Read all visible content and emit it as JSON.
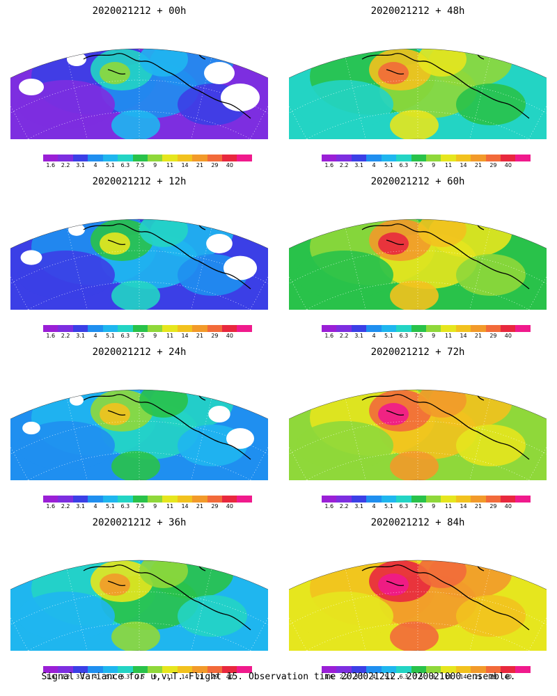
{
  "panels": [
    {
      "title": "2020021212 + 00h",
      "hour": 0
    },
    {
      "title": "2020021212 + 48h",
      "hour": 48
    },
    {
      "title": "2020021212 + 12h",
      "hour": 12
    },
    {
      "title": "2020021212 + 60h",
      "hour": 60
    },
    {
      "title": "2020021212 + 24h",
      "hour": 24
    },
    {
      "title": "2020021212 + 72h",
      "hour": 72
    },
    {
      "title": "2020021212 + 36h",
      "hour": 36
    },
    {
      "title": "2020021212 + 84h",
      "hour": 84
    }
  ],
  "colorbar": {
    "labels": [
      "1.6",
      "2.2",
      "3.1",
      "4",
      "5.1",
      "6.3",
      "7.5",
      "9",
      "11",
      "14",
      "21",
      "29",
      "40"
    ],
    "colors": [
      "#9a1fd6",
      "#7d2ee0",
      "#3b3fe6",
      "#1f8ff0",
      "#1fb6ef",
      "#23d4c4",
      "#29c24a",
      "#8fd83a",
      "#e6e61e",
      "#f2c21e",
      "#f29a2a",
      "#f26a3a",
      "#e8283e",
      "#f01a8c"
    ]
  },
  "footer": "Signal Variance for u,v,T. Flight 15. Observation time 2020021212. 2020021000 ensemble.",
  "colors": {
    "coastline": "#000000",
    "missing": "#ffffff"
  }
}
